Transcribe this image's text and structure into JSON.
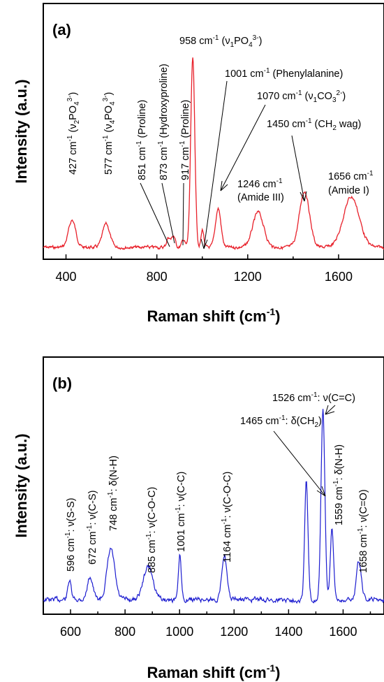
{
  "chart_data": [
    {
      "type": "line",
      "panel_label": "(a)",
      "xlabel": "Raman shift (cm⁻¹)",
      "ylabel": "Intensity (a.u.)",
      "xlim": [
        300,
        1800
      ],
      "xticks": [
        400,
        800,
        1200,
        1600
      ],
      "yticks_shown": false,
      "color": "#e8202a",
      "series": [
        {
          "peaks": [
            {
              "x": 427,
              "height": 0.14,
              "width": 16
            },
            {
              "x": 577,
              "height": 0.12,
              "width": 16
            },
            {
              "x": 851,
              "height": 0.05,
              "width": 8
            },
            {
              "x": 873,
              "height": 0.06,
              "width": 8
            },
            {
              "x": 917,
              "height": 0.04,
              "width": 7
            },
            {
              "x": 958,
              "height": 0.97,
              "width": 9
            },
            {
              "x": 1001,
              "height": 0.09,
              "width": 6
            },
            {
              "x": 1070,
              "height": 0.2,
              "width": 12
            },
            {
              "x": 1246,
              "height": 0.18,
              "width": 24
            },
            {
              "x": 1450,
              "height": 0.29,
              "width": 22
            },
            {
              "x": 1656,
              "height": 0.26,
              "width": 35
            }
          ]
        }
      ],
      "annotations": [
        "427 cm⁻¹ (ν₂PO₄³⁻)",
        "577 cm⁻¹ (ν₄PO₄³⁻)",
        "851 cm⁻¹ (Proline)",
        "873 cm⁻¹ (Hydroxyproline)",
        "917 cm⁻¹ (Proline)",
        "958 cm⁻¹ (ν₁PO₄³⁻)",
        "1001 cm⁻¹ (Phenylalanine)",
        "1070 cm⁻¹ (ν₁CO₃²⁻)",
        "1450 cm⁻¹ (CH₂ wag)",
        "1246 cm⁻¹",
        "(Amide III)",
        "1656 cm⁻¹",
        "(Amide I)"
      ]
    },
    {
      "type": "line",
      "panel_label": "(b)",
      "xlabel": "Raman shift (cm⁻¹)",
      "ylabel": "Intensity (a.u.)",
      "xlim": [
        500,
        1750
      ],
      "xticks": [
        600,
        800,
        1000,
        1200,
        1400,
        1600
      ],
      "yticks_shown": false,
      "color": "#1d1dd0",
      "series": [
        {
          "peaks": [
            {
              "x": 596,
              "height": 0.1,
              "width": 6
            },
            {
              "x": 672,
              "height": 0.12,
              "width": 10
            },
            {
              "x": 748,
              "height": 0.26,
              "width": 14
            },
            {
              "x": 885,
              "height": 0.17,
              "width": 18
            },
            {
              "x": 1001,
              "height": 0.23,
              "width": 5
            },
            {
              "x": 1164,
              "height": 0.24,
              "width": 9
            },
            {
              "x": 1465,
              "height": 0.62,
              "width": 6
            },
            {
              "x": 1526,
              "height": 0.98,
              "width": 7
            },
            {
              "x": 1559,
              "height": 0.36,
              "width": 6
            },
            {
              "x": 1658,
              "height": 0.2,
              "width": 9
            }
          ]
        }
      ],
      "annotations": [
        "596 cm⁻¹: ν(S-S)",
        "672 cm⁻¹: ν(C-S)",
        "748 cm⁻¹: δ(N-H)",
        "885 cm⁻¹: ν(C-O-C)",
        "1001 cm⁻¹: ν(C-C)",
        "1164 cm⁻¹: ν(C-O-C)",
        "1465 cm⁻¹: δ(CH₂)",
        "1526 cm⁻¹: ν(C=C)",
        "1559 cm⁻¹: δ(N-H)",
        "1658 cm⁻¹: ν(C=O)"
      ]
    }
  ]
}
